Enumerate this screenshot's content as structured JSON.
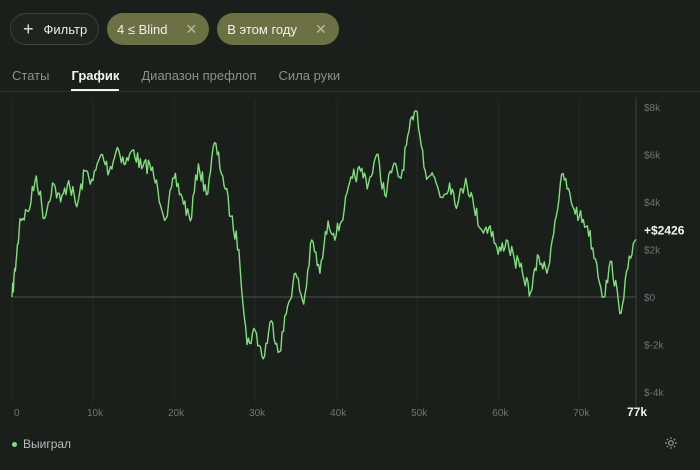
{
  "filters": {
    "add_label": "Фильтр",
    "chips": [
      {
        "label": "4 ≤ Blind"
      },
      {
        "label": "В этом году"
      }
    ]
  },
  "tabs": [
    {
      "label": "Статы",
      "active": false
    },
    {
      "label": "График",
      "active": true
    },
    {
      "label": "Диапазон префлоп",
      "active": false
    },
    {
      "label": "Сила руки",
      "active": false
    }
  ],
  "chart_data": {
    "type": "line",
    "x_ticks": [
      "0",
      "10k",
      "20k",
      "30k",
      "40k",
      "50k",
      "60k",
      "70k"
    ],
    "x_tick_values": [
      0,
      10000,
      20000,
      30000,
      40000,
      50000,
      60000,
      70000
    ],
    "x_end_label": "77k",
    "x_range": [
      0,
      77000
    ],
    "y_ticks": [
      "$8k",
      "$6k",
      "$4k",
      "$2k",
      "$0",
      "$-2k",
      "$-4k"
    ],
    "y_tick_values": [
      8000,
      6000,
      4000,
      2000,
      0,
      -2000,
      -4000
    ],
    "y_range": [
      -4000,
      8000
    ],
    "zero_line": true,
    "end_value_label": "+$2426",
    "series": [
      {
        "name": "Выиграл",
        "color": "#7fe07a",
        "x": [
          0,
          500,
          1000,
          2000,
          3000,
          4000,
          5000,
          6000,
          7000,
          8000,
          9000,
          10000,
          11000,
          12000,
          13000,
          14000,
          15000,
          16000,
          17000,
          18000,
          19000,
          20000,
          21000,
          22000,
          23000,
          24000,
          25000,
          26000,
          27000,
          28000,
          29000,
          30000,
          31000,
          32000,
          33000,
          34000,
          35000,
          36000,
          37000,
          38000,
          39000,
          40000,
          41000,
          42000,
          43000,
          44000,
          45000,
          46000,
          47000,
          48000,
          49000,
          50000,
          51000,
          52000,
          53000,
          54000,
          55000,
          56000,
          57000,
          58000,
          59000,
          60000,
          61000,
          62000,
          63000,
          64000,
          65000,
          66000,
          67000,
          68000,
          69000,
          70000,
          71000,
          72000,
          73000,
          74000,
          75000,
          76000,
          77000
        ],
        "y": [
          0,
          1500,
          3300,
          3600,
          5100,
          3300,
          4800,
          4000,
          4900,
          3800,
          5300,
          4900,
          6000,
          5300,
          6300,
          5600,
          6200,
          5400,
          5600,
          4500,
          3300,
          5000,
          4200,
          3200,
          5600,
          4300,
          6500,
          5100,
          3400,
          2000,
          -2000,
          -1400,
          -2600,
          -1000,
          -2300,
          -400,
          1000,
          -300,
          2400,
          1000,
          3200,
          2600,
          3700,
          5000,
          5300,
          4800,
          6000,
          4300,
          5500,
          5000,
          7000,
          7800,
          5300,
          5100,
          4200,
          4800,
          3900,
          5000,
          3800,
          2800,
          3000,
          1800,
          2400,
          1600,
          1000,
          200,
          1700,
          1000,
          3200,
          5200,
          4000,
          3400,
          3000,
          1600,
          0,
          1500,
          -700,
          1200,
          2426
        ]
      }
    ]
  }
}
